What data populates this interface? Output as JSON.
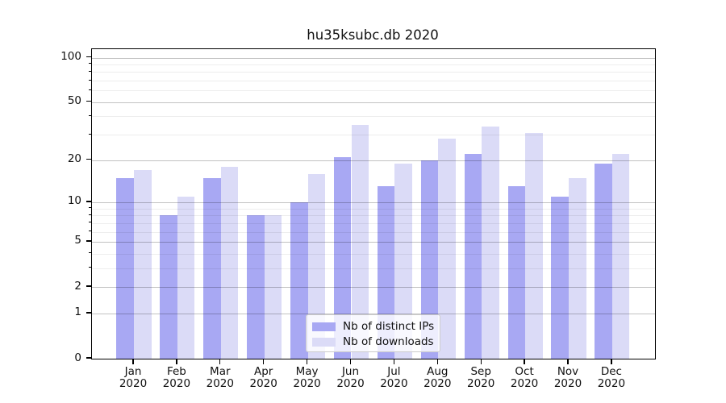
{
  "chart_data": {
    "type": "bar",
    "title": "hu35ksubc.db 2020",
    "categories": [
      "Jan",
      "Feb",
      "Mar",
      "Apr",
      "May",
      "Jun",
      "Jul",
      "Aug",
      "Sep",
      "Oct",
      "Nov",
      "Dec"
    ],
    "x_year_label": "2020",
    "series": [
      {
        "name": "Nb of distinct IPs",
        "color": "#a8a8f3",
        "values": [
          15,
          8,
          15,
          8,
          10,
          21,
          13,
          20,
          22,
          13,
          11,
          19
        ]
      },
      {
        "name": "Nb of downloads",
        "color": "#dbdbf7",
        "values": [
          17,
          11,
          18,
          8,
          16,
          35,
          19,
          28,
          34,
          31,
          15,
          22
        ]
      }
    ],
    "y_scale": "log10(1+x)",
    "ylim": [
      0,
      114
    ],
    "y_ticks_major": [
      0,
      1,
      2,
      5,
      10,
      20,
      50,
      100
    ],
    "y_ticks_minor": [
      3,
      4,
      6,
      7,
      8,
      9,
      30,
      40,
      60,
      70,
      80,
      90
    ],
    "grid": "major and minor horizontal lines drawn above bars",
    "legend_position": "bottom-center"
  }
}
